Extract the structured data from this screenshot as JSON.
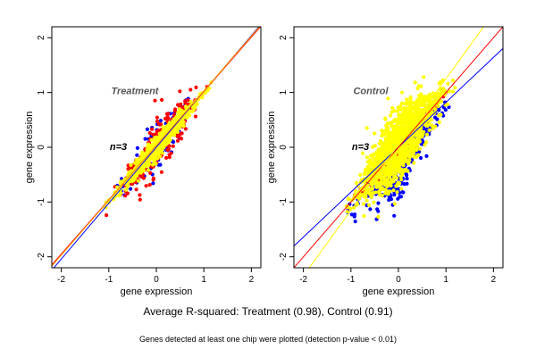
{
  "colors": {
    "group_a": "#0000ff",
    "group_b": "#ff0000",
    "all": "#ffff00",
    "fit_blue": "#0000ff",
    "fit_red": "#ff0000",
    "identity": "#ffa500"
  },
  "captions": {
    "main": "Average R-squared: Treatment (0.98), Control (0.91)",
    "sub": "Genes detected at least one chip were plotted (detection p-value < 0.01)"
  },
  "chart_data": [
    {
      "type": "scatter",
      "title": "Treatment",
      "n_label": "n=3",
      "xlabel": "gene expression",
      "ylabel": "gene expression",
      "xlim": [
        -2.2,
        2.2
      ],
      "ylim": [
        -2.2,
        2.2
      ],
      "xticks": [
        "-2",
        "-1",
        "0",
        "1",
        "2"
      ],
      "yticks": [
        "-2",
        "-1",
        "0",
        "1",
        "2"
      ],
      "cloud": {
        "center": [
          0.05,
          0.1
        ],
        "x_range": [
          -1.1,
          1.2
        ],
        "spread_all": 0.07,
        "spread_outliers": 0.18
      },
      "lines": [
        {
          "color": "#0000ff",
          "slope": 1.02,
          "intercept": 0.0
        },
        {
          "color": "#ff0000",
          "slope": 0.99,
          "intercept": 0.03
        },
        {
          "color": "#ffa500",
          "slope": 1.0,
          "intercept": 0.03
        }
      ]
    },
    {
      "type": "scatter",
      "title": "Control",
      "n_label": "n=3",
      "xlabel": "gene expression",
      "ylabel": "gene expression",
      "xlim": [
        -2.2,
        2.2
      ],
      "ylim": [
        -2.2,
        2.2
      ],
      "xticks": [
        "-2",
        "-1",
        "0",
        "1",
        "2"
      ],
      "yticks": [
        "-2",
        "-1",
        "0",
        "1",
        "2"
      ],
      "cloud": {
        "center": [
          0.0,
          0.0
        ],
        "x_range": [
          -1.1,
          1.2
        ],
        "spread_all": 0.25,
        "spread_outliers": 0.3
      },
      "lines": [
        {
          "color": "#0000ff",
          "slope": 0.82,
          "intercept": 0.0
        },
        {
          "color": "#ff0000",
          "slope": 1.0,
          "intercept": 0.0
        },
        {
          "color": "#ffff00",
          "slope": 1.2,
          "intercept": 0.05
        }
      ]
    }
  ]
}
